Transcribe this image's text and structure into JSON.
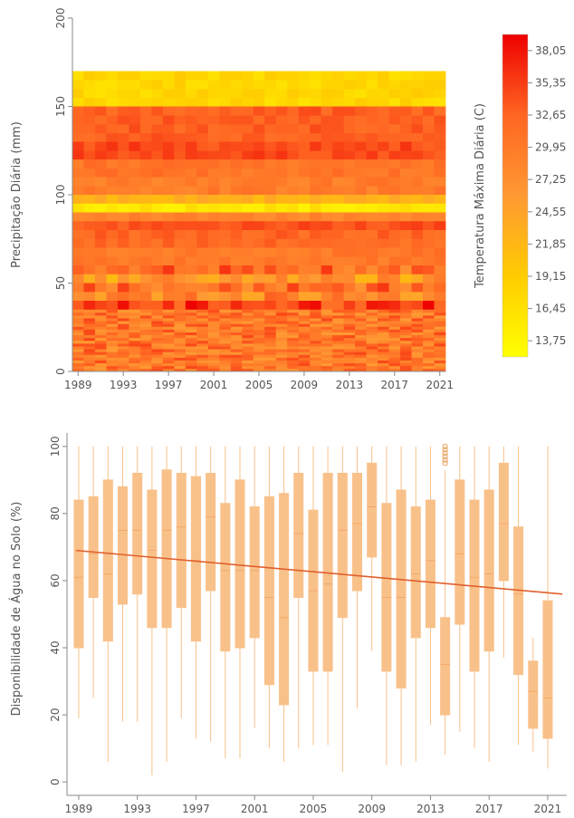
{
  "chart_data": [
    {
      "type": "heatmap",
      "title": "",
      "xlabel": "",
      "ylabel": "Precipitação Diária (mm)",
      "x_ticks": [
        "1989",
        "1993",
        "1997",
        "2001",
        "2005",
        "2009",
        "2013",
        "2017",
        "2021"
      ],
      "y_ticks": [
        "0",
        "50",
        "100",
        "150",
        "200"
      ],
      "xlim": [
        1988.5,
        2021.5
      ],
      "ylim": [
        0,
        200
      ],
      "x_years": [
        1989,
        2021
      ],
      "y_bins": [
        {
          "y0": 150,
          "y1": 170,
          "level": 0.2
        },
        {
          "y0": 130,
          "y1": 150,
          "level": 0.76
        },
        {
          "y0": 120,
          "y1": 130,
          "level": 0.82
        },
        {
          "y0": 110,
          "y1": 120,
          "level": 0.68
        },
        {
          "y0": 100,
          "y1": 110,
          "level": 0.64
        },
        {
          "y0": 95,
          "y1": 100,
          "level": 0.38
        },
        {
          "y0": 90,
          "y1": 95,
          "level": 0.12
        },
        {
          "y0": 85,
          "y1": 90,
          "level": 0.6
        },
        {
          "y0": 80,
          "y1": 85,
          "level": 0.8
        },
        {
          "y0": 75,
          "y1": 80,
          "level": 0.74
        },
        {
          "y0": 70,
          "y1": 75,
          "level": 0.72
        },
        {
          "y0": 60,
          "y1": 70,
          "level": 0.66
        },
        {
          "y0": 55,
          "y1": 60,
          "level": 0.7
        },
        {
          "y0": 50,
          "y1": 55,
          "level": 0.48
        },
        {
          "y0": 45,
          "y1": 50,
          "level": 0.7
        },
        {
          "y0": 40,
          "y1": 45,
          "level": 0.6
        },
        {
          "y0": 35,
          "y1": 40,
          "level": 0.84
        },
        {
          "y0": 0,
          "y1": 35,
          "level": 0.66
        }
      ],
      "colorbar": {
        "title": "Temperatura Máxima Diária (C)",
        "ticks": [
          "38,05",
          "35,35",
          "32,65",
          "29,95",
          "27,25",
          "24,55",
          "21,85",
          "19,15",
          "16,45",
          "13,75"
        ],
        "range": [
          12.4,
          39.4
        ],
        "colors": [
          "#ffff00",
          "#ffcc00",
          "#ff9933",
          "#ff6622",
          "#ee0000"
        ]
      },
      "grid": false
    },
    {
      "type": "box",
      "title": "",
      "xlabel": "",
      "ylabel": "Disponibilidade de Água no Solo (%)",
      "x_ticks": [
        "1989",
        "1993",
        "1997",
        "2001",
        "2005",
        "2009",
        "2013",
        "2017",
        "2021"
      ],
      "y_ticks": [
        "0",
        "20",
        "40",
        "60",
        "80",
        "100"
      ],
      "xlim": [
        1988.2,
        2022.3
      ],
      "ylim": [
        -4,
        104
      ],
      "box_color": "#f9c18a",
      "line_color": "#e0602e",
      "boxes": [
        {
          "year": 1989,
          "min": 19,
          "q1": 40,
          "median": 61,
          "q3": 84,
          "max": 100
        },
        {
          "year": 1990,
          "min": 25,
          "q1": 55,
          "median": 68,
          "q3": 85,
          "max": 100
        },
        {
          "year": 1991,
          "min": 6,
          "q1": 42,
          "median": 62,
          "q3": 90,
          "max": 100
        },
        {
          "year": 1992,
          "min": 18,
          "q1": 53,
          "median": 75,
          "q3": 88,
          "max": 100
        },
        {
          "year": 1993,
          "min": 18,
          "q1": 56,
          "median": 75,
          "q3": 92,
          "max": 100
        },
        {
          "year": 1994,
          "min": 2,
          "q1": 46,
          "median": 69,
          "q3": 87,
          "max": 100
        },
        {
          "year": 1995,
          "min": 6,
          "q1": 46,
          "median": 75,
          "q3": 93,
          "max": 100
        },
        {
          "year": 1996,
          "min": 19,
          "q1": 52,
          "median": 76,
          "q3": 92,
          "max": 100
        },
        {
          "year": 1997,
          "min": 13,
          "q1": 42,
          "median": 66,
          "q3": 91,
          "max": 100
        },
        {
          "year": 1998,
          "min": 12,
          "q1": 57,
          "median": 79,
          "q3": 92,
          "max": 100
        },
        {
          "year": 1999,
          "min": 7,
          "q1": 39,
          "median": 63,
          "q3": 83,
          "max": 100
        },
        {
          "year": 2000,
          "min": 7,
          "q1": 40,
          "median": 63,
          "q3": 90,
          "max": 100
        },
        {
          "year": 2001,
          "min": 16,
          "q1": 43,
          "median": 63,
          "q3": 82,
          "max": 100
        },
        {
          "year": 2002,
          "min": 10,
          "q1": 29,
          "median": 55,
          "q3": 85,
          "max": 100
        },
        {
          "year": 2003,
          "min": 6,
          "q1": 23,
          "median": 49,
          "q3": 86,
          "max": 100
        },
        {
          "year": 2004,
          "min": 10,
          "q1": 55,
          "median": 74,
          "q3": 92,
          "max": 100
        },
        {
          "year": 2005,
          "min": 11,
          "q1": 33,
          "median": 57,
          "q3": 81,
          "max": 100
        },
        {
          "year": 2006,
          "min": 11,
          "q1": 33,
          "median": 59,
          "q3": 92,
          "max": 100
        },
        {
          "year": 2007,
          "min": 3,
          "q1": 49,
          "median": 75,
          "q3": 92,
          "max": 100
        },
        {
          "year": 2008,
          "min": 22,
          "q1": 57,
          "median": 77,
          "q3": 92,
          "max": 100
        },
        {
          "year": 2009,
          "min": 39,
          "q1": 67,
          "median": 82,
          "q3": 95,
          "max": 100
        },
        {
          "year": 2010,
          "min": 5,
          "q1": 33,
          "median": 55,
          "q3": 83,
          "max": 100
        },
        {
          "year": 2011,
          "min": 5,
          "q1": 28,
          "median": 55,
          "q3": 87,
          "max": 100
        },
        {
          "year": 2012,
          "min": 6,
          "q1": 43,
          "median": 62,
          "q3": 82,
          "max": 100
        },
        {
          "year": 2013,
          "min": 17,
          "q1": 46,
          "median": 66,
          "q3": 84,
          "max": 100
        },
        {
          "year": 2014,
          "min": 8,
          "q1": 20,
          "median": 35,
          "q3": 49,
          "max": 93,
          "outliers": [
            95,
            96,
            97,
            98,
            99,
            100
          ]
        },
        {
          "year": 2015,
          "min": 15,
          "q1": 47,
          "median": 68,
          "q3": 90,
          "max": 100
        },
        {
          "year": 2016,
          "min": 10,
          "q1": 33,
          "median": 61,
          "q3": 84,
          "max": 100
        },
        {
          "year": 2017,
          "min": 6,
          "q1": 39,
          "median": 62,
          "q3": 87,
          "max": 100
        },
        {
          "year": 2018,
          "min": 37,
          "q1": 60,
          "median": 77,
          "q3": 95,
          "max": 100
        },
        {
          "year": 2019,
          "min": 11,
          "q1": 32,
          "median": 56,
          "q3": 76,
          "max": 100
        },
        {
          "year": 2020,
          "min": 9,
          "q1": 16,
          "median": 27,
          "q3": 36,
          "max": 43
        },
        {
          "year": 2021,
          "min": 4,
          "q1": 13,
          "median": 25,
          "q3": 54,
          "max": 100
        }
      ],
      "trend": {
        "x": [
          1988.8,
          2022.0
        ],
        "y": [
          69,
          56
        ]
      },
      "grid": false
    }
  ]
}
